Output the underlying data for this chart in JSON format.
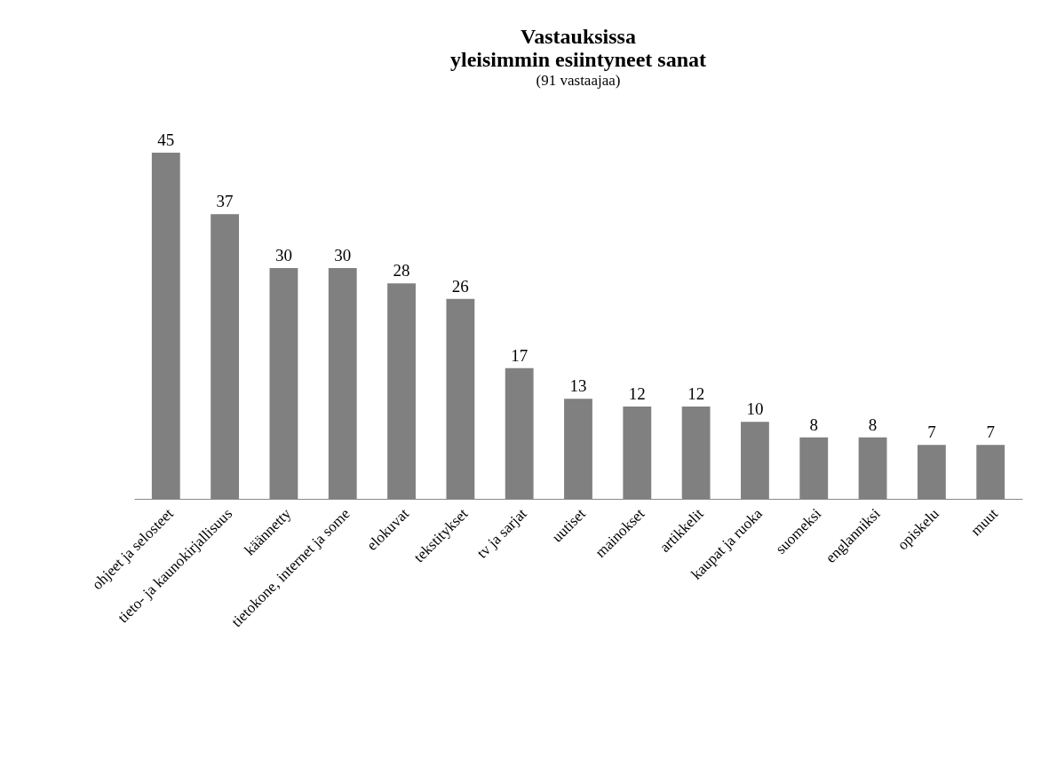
{
  "chart_data": {
    "type": "bar",
    "title": "Vastauksissa\nyleisimmin esiintyneet sanat",
    "subtitle": "(91 vastaajaa)",
    "categories": [
      "ohjeet ja selosteet",
      "tieto- ja kaunokirjallisuus",
      "käännetty",
      "tietokone, internet ja some",
      "elokuvat",
      "tekstitykset",
      "tv ja sarjat",
      "uutiset",
      "mainokset",
      "artikkelit",
      "kaupat ja ruoka",
      "suomeksi",
      "englanniksi",
      "opiskelu",
      "muut"
    ],
    "values": [
      45,
      37,
      30,
      30,
      28,
      26,
      17,
      13,
      12,
      12,
      10,
      8,
      8,
      7,
      7
    ],
    "color": "#808080",
    "data_labels": true
  }
}
